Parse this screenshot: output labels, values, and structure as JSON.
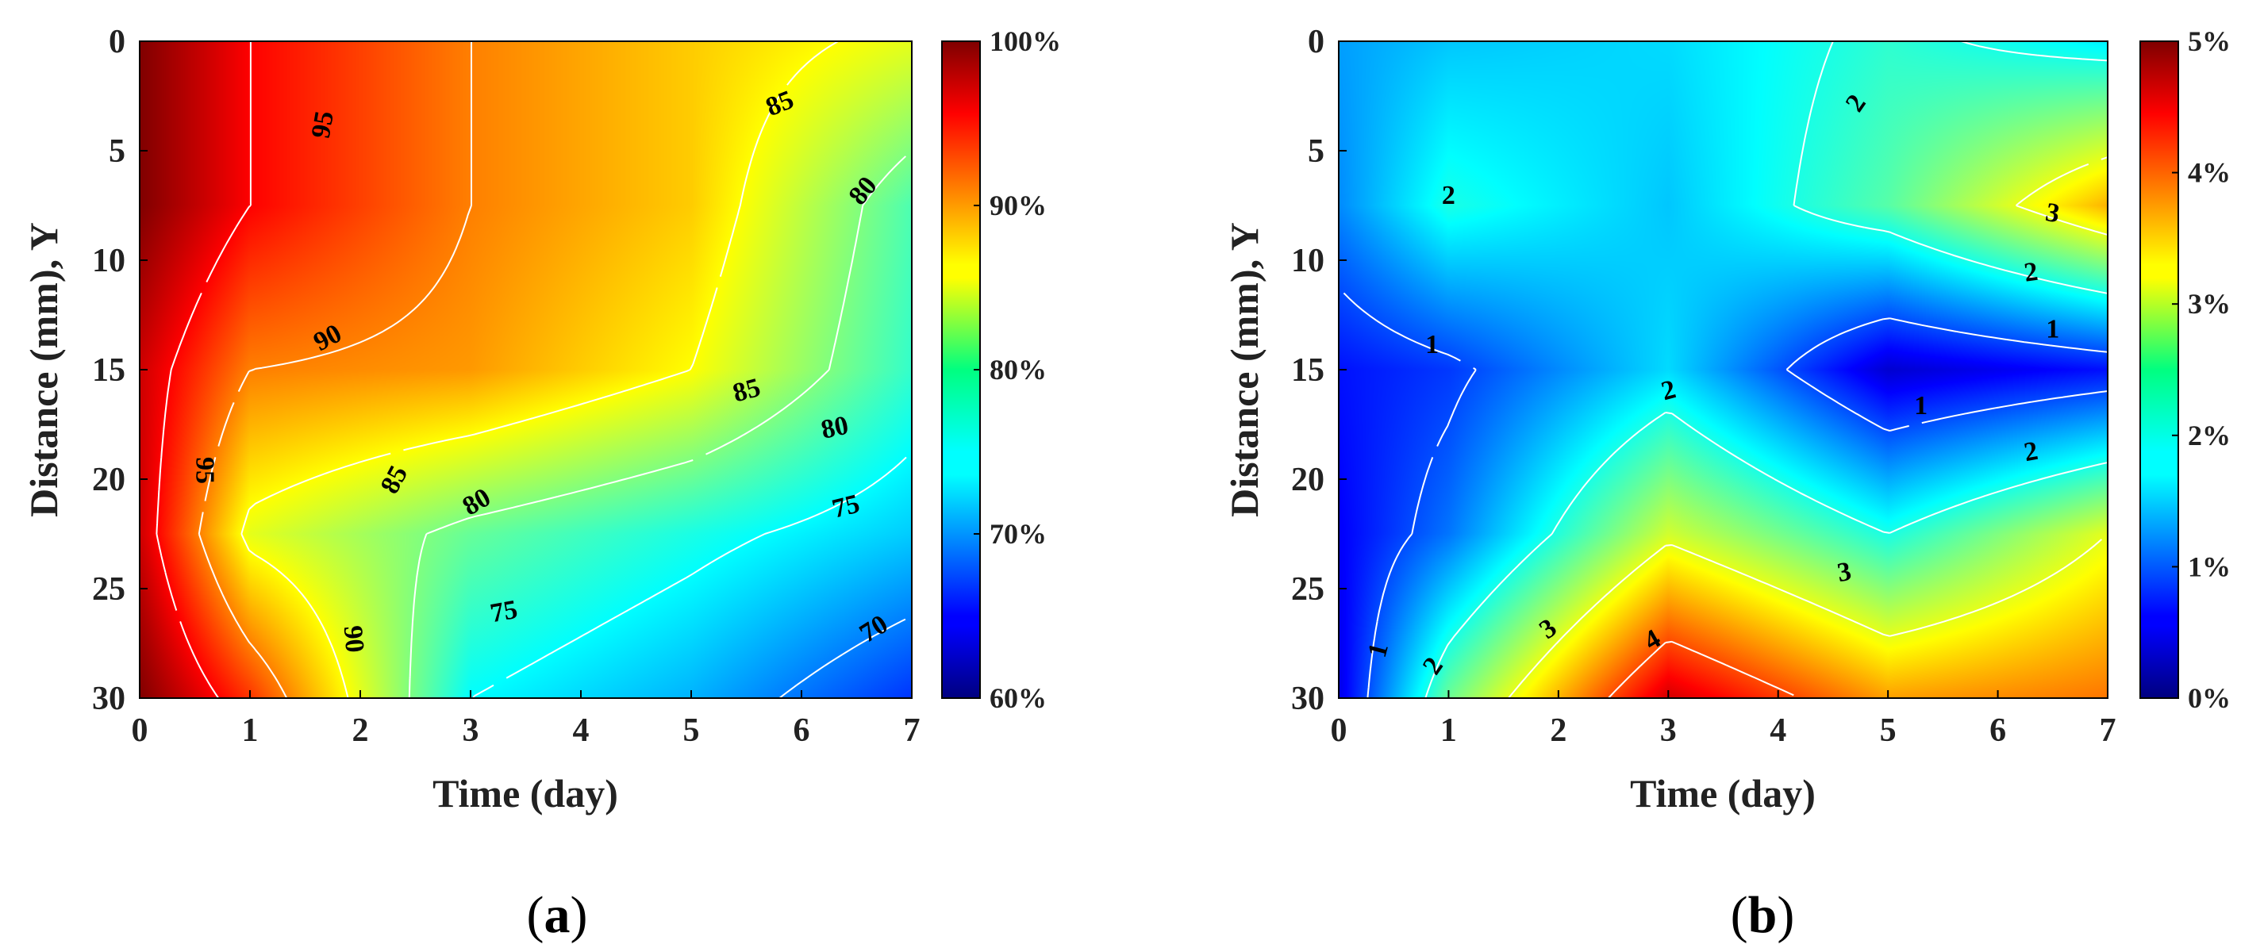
{
  "chart_data": [
    {
      "type": "heatmap",
      "panel_label": "a",
      "xlabel": "Time (day)",
      "ylabel": "Distance (mm), Y",
      "xlim": [
        0,
        7
      ],
      "ylim": [
        0,
        30
      ],
      "y_inverted": true,
      "xticks": [
        "0",
        "1",
        "2",
        "3",
        "4",
        "5",
        "6",
        "7"
      ],
      "yticks": [
        "0",
        "5",
        "10",
        "15",
        "20",
        "25",
        "30"
      ],
      "colorbar": {
        "ticks": [
          "100%",
          "90%",
          "80%",
          "70%",
          "60%"
        ],
        "range": [
          60,
          100
        ],
        "colormap": "jet"
      },
      "x": [
        0,
        1,
        3,
        5,
        7
      ],
      "y": [
        0,
        7.5,
        15,
        22.5,
        30
      ],
      "values": [
        [
          100,
          95,
          90,
          87,
          84
        ],
        [
          100,
          95,
          90,
          87,
          78
        ],
        [
          97,
          90,
          89,
          85,
          77
        ],
        [
          97,
          84,
          79,
          76,
          73
        ],
        [
          100,
          93,
          75,
          72,
          67
        ]
      ],
      "contour_labels": [
        {
          "text": "95",
          "x": 1.65,
          "y": 3.8,
          "angle": -80
        },
        {
          "text": "95",
          "x": 0.6,
          "y": 19.6,
          "angle": 90
        },
        {
          "text": "90",
          "x": 1.7,
          "y": 13.5,
          "angle": -28
        },
        {
          "text": "90",
          "x": 1.95,
          "y": 27.3,
          "angle": 85
        },
        {
          "text": "85",
          "x": 5.8,
          "y": 2.8,
          "angle": -22
        },
        {
          "text": "85",
          "x": 5.5,
          "y": 15.9,
          "angle": -15
        },
        {
          "text": "85",
          "x": 2.3,
          "y": 20.0,
          "angle": -62
        },
        {
          "text": "80",
          "x": 6.55,
          "y": 6.8,
          "angle": -50
        },
        {
          "text": "80",
          "x": 6.3,
          "y": 17.6,
          "angle": -12
        },
        {
          "text": "80",
          "x": 3.05,
          "y": 21.0,
          "angle": -30
        },
        {
          "text": "75",
          "x": 6.4,
          "y": 21.2,
          "angle": -14
        },
        {
          "text": "75",
          "x": 3.3,
          "y": 26.0,
          "angle": -10
        },
        {
          "text": "70",
          "x": 6.65,
          "y": 26.8,
          "angle": -32
        }
      ]
    },
    {
      "type": "heatmap",
      "panel_label": "b",
      "xlabel": "Time (day)",
      "ylabel": "Distance (mm), Y",
      "xlim": [
        0,
        7
      ],
      "ylim": [
        0,
        30
      ],
      "y_inverted": true,
      "xticks": [
        "0",
        "1",
        "2",
        "3",
        "4",
        "5",
        "6",
        "7"
      ],
      "yticks": [
        "0",
        "5",
        "10",
        "15",
        "20",
        "25",
        "30"
      ],
      "colorbar": {
        "ticks": [
          "5%",
          "4%",
          "3%",
          "2%",
          "1%",
          "0%"
        ],
        "range": [
          0,
          5
        ],
        "colormap": "jet"
      },
      "x": [
        0,
        1,
        3,
        5,
        7
      ],
      "y": [
        0,
        7.5,
        15,
        22.5,
        30
      ],
      "values": [
        [
          1.4,
          1.6,
          1.7,
          2.1,
          1.8
        ],
        [
          1.3,
          2.0,
          1.6,
          2.3,
          3.5
        ],
        [
          0.7,
          0.9,
          1.7,
          0.4,
          0.7
        ],
        [
          0.6,
          1.2,
          2.9,
          2.0,
          3.0
        ],
        [
          0.5,
          2.4,
          4.6,
          3.6,
          3.8
        ]
      ],
      "contour_labels": [
        {
          "text": "2",
          "x": 4.7,
          "y": 2.8,
          "angle": -55
        },
        {
          "text": "2",
          "x": 1.0,
          "y": 7.0,
          "angle": 0
        },
        {
          "text": "3",
          "x": 6.5,
          "y": 7.8,
          "angle": 10
        },
        {
          "text": "2",
          "x": 6.3,
          "y": 10.5,
          "angle": -8
        },
        {
          "text": "1",
          "x": 0.85,
          "y": 13.8,
          "angle": 0
        },
        {
          "text": "1",
          "x": 6.5,
          "y": 13.1,
          "angle": 0
        },
        {
          "text": "1",
          "x": 5.3,
          "y": 16.6,
          "angle": 0
        },
        {
          "text": "2",
          "x": 3.0,
          "y": 15.9,
          "angle": -15
        },
        {
          "text": "2",
          "x": 6.3,
          "y": 18.7,
          "angle": -10
        },
        {
          "text": "3",
          "x": 4.6,
          "y": 24.2,
          "angle": -10
        },
        {
          "text": "3",
          "x": 1.9,
          "y": 26.8,
          "angle": -35
        },
        {
          "text": "4",
          "x": 2.85,
          "y": 27.3,
          "angle": -30
        },
        {
          "text": "1",
          "x": 0.35,
          "y": 27.8,
          "angle": -75
        },
        {
          "text": "2",
          "x": 0.85,
          "y": 28.5,
          "angle": -55
        }
      ]
    }
  ]
}
